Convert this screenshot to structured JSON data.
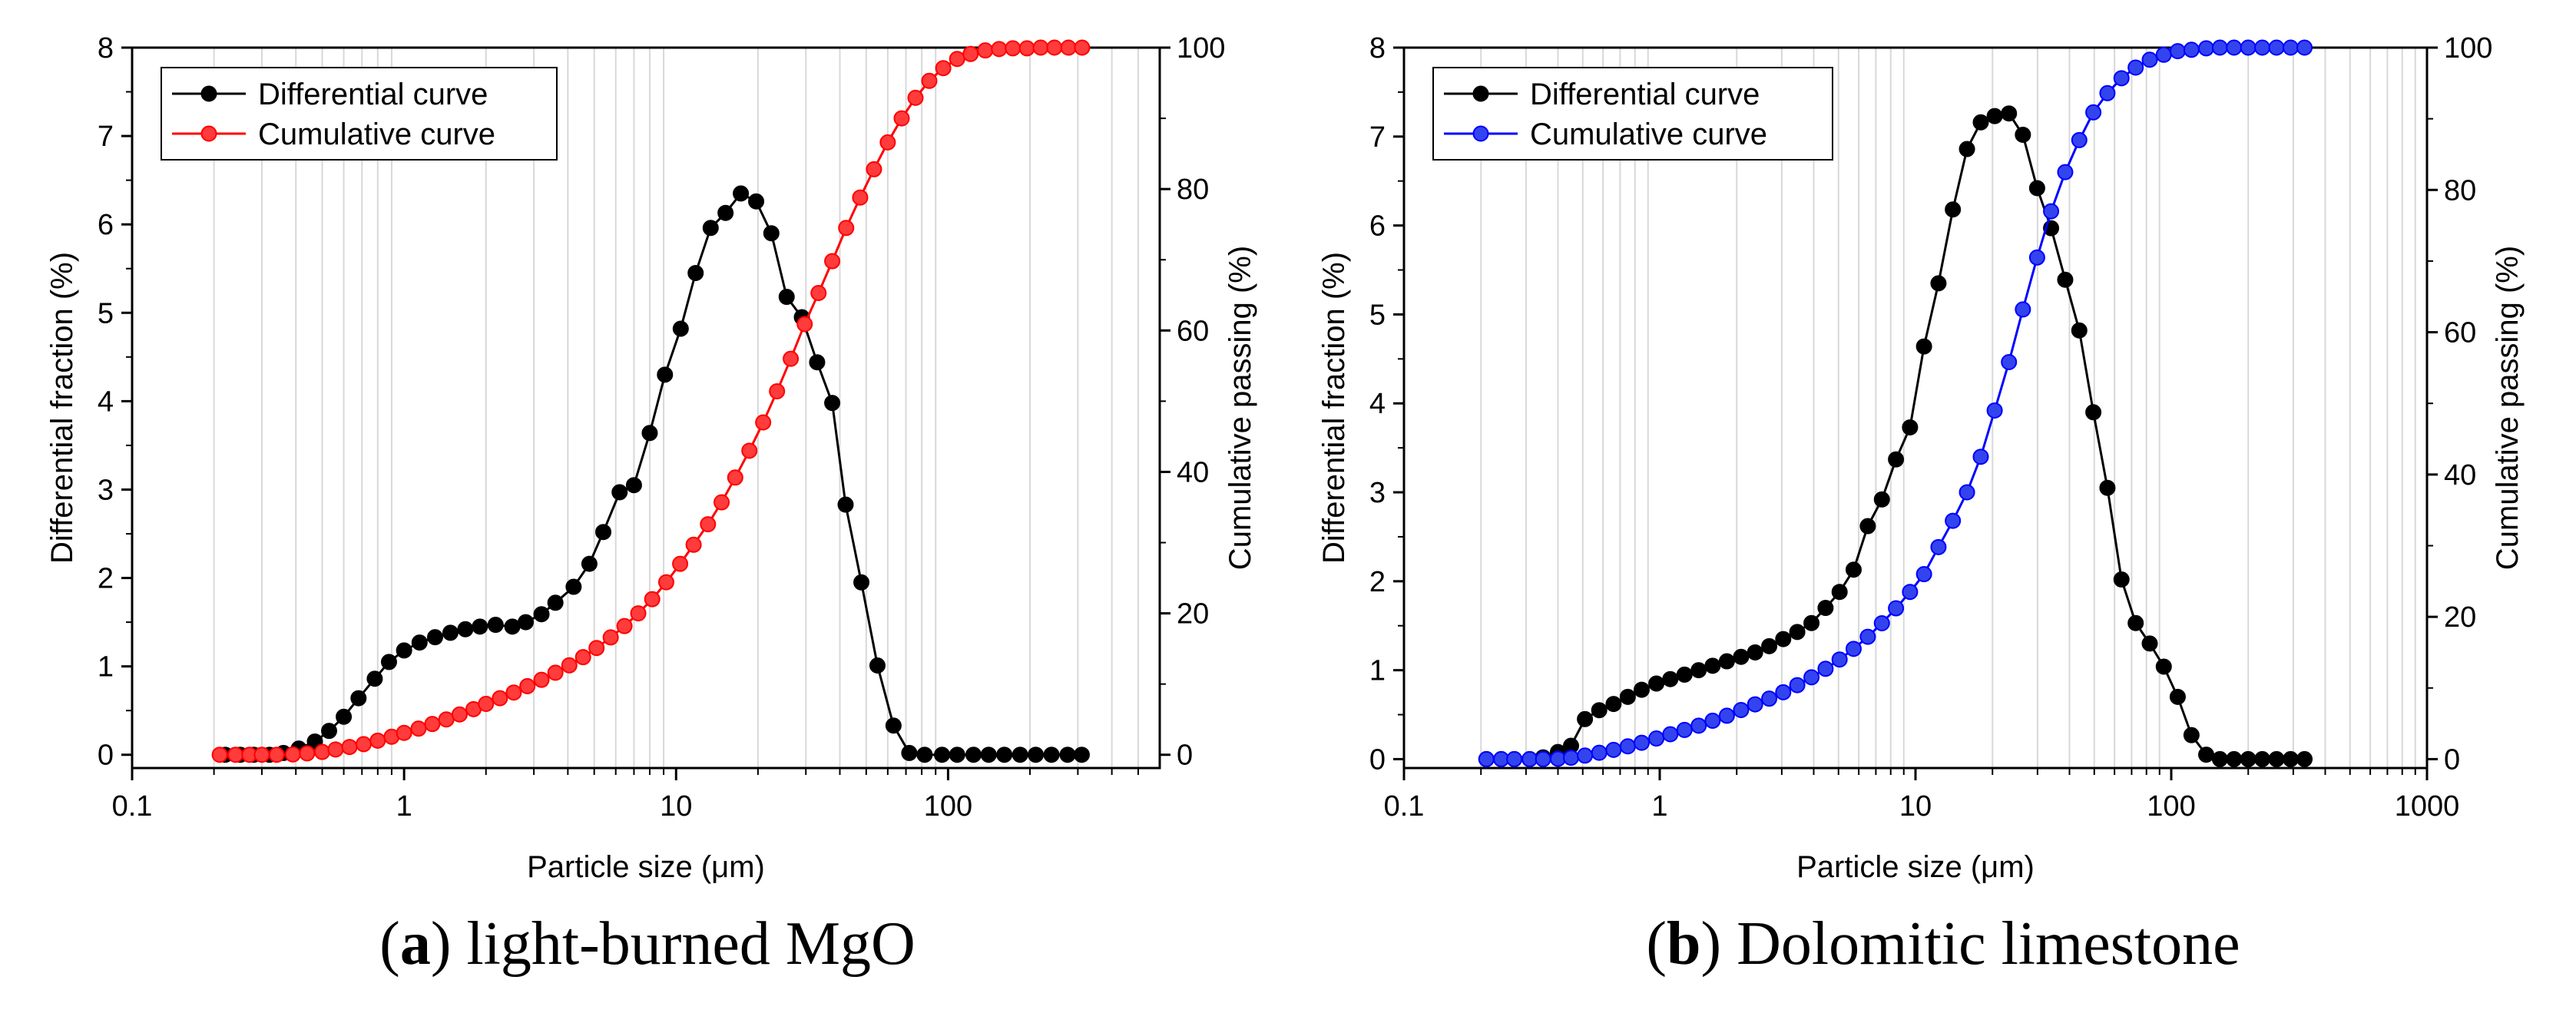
{
  "chart_data": [
    {
      "type": "line",
      "id": "a",
      "caption_letter": "a",
      "caption_text": "light-burned MgO",
      "xlabel": "Particle size (μm)",
      "ylabel_left": "Differential fraction (%)",
      "ylabel_right": "Cumulative passing (%)",
      "xscale": "log",
      "xlim": [
        0.1,
        600
      ],
      "ylim_left": [
        -0.15,
        8
      ],
      "ylim_right": [
        -1.875,
        100
      ],
      "x_ticks": [
        {
          "v": 0.1,
          "label": "0.1"
        },
        {
          "v": 1,
          "label": "1"
        },
        {
          "v": 10,
          "label": "10"
        },
        {
          "v": 100,
          "label": "100"
        }
      ],
      "y_left_ticks": [
        "0",
        "1",
        "2",
        "3",
        "4",
        "5",
        "6",
        "7",
        "8"
      ],
      "y_right_ticks": [
        "0",
        "20",
        "40",
        "60",
        "80",
        "100"
      ],
      "legend_position": "top-left",
      "grid": "vertical minor log lines",
      "series": [
        {
          "name": "Differential curve",
          "axis": "left",
          "color": "#000000",
          "marker_fill": "#000000",
          "x": [
            0.22,
            0.25,
            0.28,
            0.32,
            0.36,
            0.41,
            0.47,
            0.53,
            0.6,
            0.68,
            0.78,
            0.88,
            1.0,
            1.14,
            1.3,
            1.48,
            1.68,
            1.9,
            2.17,
            2.5,
            2.8,
            3.2,
            3.6,
            4.2,
            4.8,
            5.4,
            6.2,
            7.0,
            8.0,
            9.1,
            10.4,
            11.8,
            13.4,
            15.2,
            17.3,
            19.7,
            22.4,
            25.5,
            29.0,
            33.0,
            37.5,
            42.0,
            48.0,
            55.0,
            63.0,
            72.0,
            82.0,
            95.0,
            108.0,
            124.0,
            141.0,
            161.0,
            184.0,
            210.0,
            240.0,
            275.0,
            310.0
          ],
          "values": [
            0.0,
            0.0,
            0.0,
            0.0,
            0.02,
            0.07,
            0.15,
            0.27,
            0.43,
            0.64,
            0.86,
            1.05,
            1.18,
            1.27,
            1.33,
            1.38,
            1.42,
            1.45,
            1.47,
            1.45,
            1.5,
            1.59,
            1.72,
            1.9,
            2.16,
            2.52,
            2.97,
            3.05,
            3.64,
            4.3,
            4.82,
            5.45,
            5.96,
            6.13,
            6.35,
            6.26,
            5.9,
            5.18,
            4.95,
            4.44,
            3.98,
            2.83,
            1.95,
            1.01,
            0.33,
            0.02,
            0.0,
            0.0,
            0.0,
            0.0,
            0.0,
            0.0,
            0.0,
            0.0,
            0.0,
            0.0,
            0.0
          ]
        },
        {
          "name": "Cumulative curve",
          "axis": "right",
          "color": "#ff0000",
          "marker_fill": "#ff3b3b",
          "x": [
            0.21,
            0.24,
            0.27,
            0.3,
            0.34,
            0.39,
            0.44,
            0.5,
            0.56,
            0.63,
            0.71,
            0.8,
            0.9,
            1.0,
            1.13,
            1.27,
            1.43,
            1.6,
            1.8,
            2.0,
            2.25,
            2.53,
            2.84,
            3.2,
            3.6,
            4.05,
            4.55,
            5.1,
            5.75,
            6.46,
            7.26,
            8.17,
            9.2,
            10.35,
            11.6,
            13.1,
            14.7,
            16.5,
            18.6,
            20.9,
            23.5,
            26.4,
            29.7,
            33.4,
            37.5,
            42.2,
            47.5,
            53.4,
            60.0,
            67.5,
            75.9,
            85.3,
            96.0,
            108.0,
            121.0,
            137.0,
            154.0,
            173.0,
            195.0,
            219.0,
            246.0,
            277.0,
            311.0
          ],
          "values": [
            0.0,
            0.0,
            0.0,
            0.0,
            0.0,
            0.05,
            0.2,
            0.4,
            0.75,
            1.1,
            1.5,
            2.0,
            2.55,
            3.1,
            3.7,
            4.35,
            5.0,
            5.7,
            6.45,
            7.2,
            8.0,
            8.8,
            9.7,
            10.6,
            11.6,
            12.65,
            13.8,
            15.1,
            16.6,
            18.2,
            20.0,
            22.0,
            24.4,
            27.0,
            29.7,
            32.6,
            35.7,
            39.2,
            43.0,
            47.0,
            51.4,
            56.0,
            60.9,
            65.3,
            69.8,
            74.5,
            78.8,
            82.8,
            86.6,
            90.0,
            92.9,
            95.3,
            97.1,
            98.4,
            99.1,
            99.6,
            99.8,
            99.9,
            99.9,
            100.0,
            100.0,
            100.0,
            100.0
          ]
        }
      ]
    },
    {
      "type": "line",
      "id": "b",
      "caption_letter": "b",
      "caption_text": "Dolomitic limestone",
      "xlabel": "Particle size (μm)",
      "ylabel_left": "Differential fraction (%)",
      "ylabel_right": "Cumulative passing (%)",
      "xscale": "log",
      "xlim": [
        0.1,
        1000
      ],
      "ylim_left": [
        -0.1,
        8
      ],
      "ylim_right": [
        -1.25,
        100
      ],
      "x_ticks": [
        {
          "v": 0.1,
          "label": "0.1"
        },
        {
          "v": 1,
          "label": "1"
        },
        {
          "v": 10,
          "label": "10"
        },
        {
          "v": 100,
          "label": "100"
        },
        {
          "v": 1000,
          "label": "1000"
        }
      ],
      "y_left_ticks": [
        "0",
        "1",
        "2",
        "3",
        "4",
        "5",
        "6",
        "7",
        "8"
      ],
      "y_right_ticks": [
        "0",
        "20",
        "40",
        "60",
        "80",
        "100"
      ],
      "legend_position": "top-left",
      "grid": "vertical minor log lines",
      "series": [
        {
          "name": "Differential curve",
          "axis": "left",
          "color": "#000000",
          "marker_fill": "#000000",
          "x": [
            0.21,
            0.24,
            0.27,
            0.31,
            0.35,
            0.4,
            0.45,
            0.51,
            0.58,
            0.66,
            0.75,
            0.85,
            0.97,
            1.1,
            1.25,
            1.42,
            1.61,
            1.83,
            2.08,
            2.36,
            2.68,
            3.04,
            3.45,
            3.92,
            4.45,
            5.05,
            5.73,
            6.51,
            7.39,
            8.39,
            9.52,
            10.8,
            12.3,
            14.0,
            15.9,
            18.0,
            20.4,
            23.2,
            26.3,
            29.9,
            33.9,
            38.5,
            43.7,
            49.6,
            56.3,
            63.9,
            72.6,
            82.4,
            93.5,
            106.0,
            120.0,
            137.0,
            155.0,
            176.0,
            200.0,
            227.0,
            258.0,
            293.0,
            332.0
          ],
          "values": [
            0.0,
            0.0,
            0.0,
            0.0,
            0.02,
            0.08,
            0.15,
            0.45,
            0.55,
            0.62,
            0.7,
            0.78,
            0.85,
            0.9,
            0.95,
            1.0,
            1.05,
            1.1,
            1.15,
            1.2,
            1.27,
            1.35,
            1.43,
            1.53,
            1.7,
            1.88,
            2.13,
            2.62,
            2.92,
            3.37,
            3.73,
            4.64,
            5.35,
            6.18,
            6.86,
            7.16,
            7.23,
            7.26,
            7.02,
            6.42,
            5.97,
            5.39,
            4.82,
            3.9,
            3.05,
            2.02,
            1.53,
            1.3,
            1.04,
            0.7,
            0.27,
            0.05,
            0.0,
            0.0,
            0.0,
            0.0,
            0.0,
            0.0,
            0.0
          ]
        },
        {
          "name": "Cumulative curve",
          "axis": "right",
          "color": "#0000ff",
          "marker_fill": "#3344ee",
          "x": [
            0.21,
            0.24,
            0.27,
            0.31,
            0.35,
            0.4,
            0.45,
            0.51,
            0.58,
            0.66,
            0.75,
            0.85,
            0.97,
            1.1,
            1.25,
            1.42,
            1.61,
            1.83,
            2.08,
            2.36,
            2.68,
            3.04,
            3.45,
            3.92,
            4.45,
            5.05,
            5.73,
            6.51,
            7.39,
            8.39,
            9.52,
            10.8,
            12.3,
            14.0,
            15.9,
            18.0,
            20.4,
            23.2,
            26.3,
            29.9,
            33.9,
            38.5,
            43.7,
            49.6,
            56.3,
            63.9,
            72.6,
            82.4,
            93.5,
            106.0,
            120.0,
            137.0,
            155.0,
            176.0,
            200.0,
            227.0,
            258.0,
            293.0,
            332.0
          ],
          "values": [
            0.0,
            0.0,
            0.0,
            0.0,
            0.0,
            0.05,
            0.2,
            0.5,
            0.9,
            1.3,
            1.8,
            2.3,
            2.9,
            3.5,
            4.1,
            4.7,
            5.4,
            6.1,
            6.9,
            7.7,
            8.5,
            9.4,
            10.4,
            11.5,
            12.7,
            14.0,
            15.5,
            17.2,
            19.1,
            21.2,
            23.5,
            26.0,
            29.8,
            33.5,
            37.5,
            42.5,
            49.0,
            55.8,
            63.2,
            70.5,
            77.0,
            82.5,
            87.0,
            90.9,
            93.6,
            95.7,
            97.2,
            98.3,
            99.0,
            99.5,
            99.7,
            99.9,
            100.0,
            100.0,
            100.0,
            100.0,
            100.0,
            100.0,
            100.0
          ]
        }
      ]
    }
  ]
}
